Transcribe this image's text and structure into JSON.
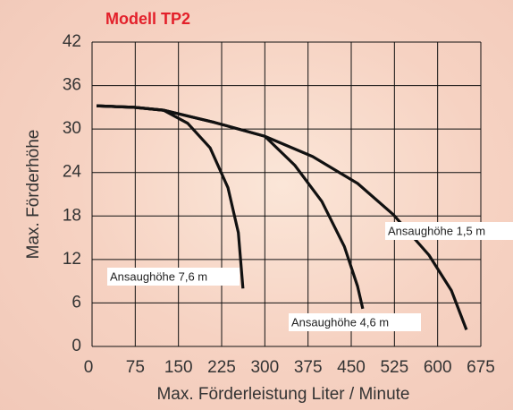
{
  "chart_data": {
    "type": "line",
    "title": "Modell TP2",
    "x_label": "Max. Förderleistung Liter / Minute",
    "y_label": "Max. Förderhöhe",
    "xlim": [
      0,
      675
    ],
    "xticks": [
      0,
      75,
      150,
      225,
      300,
      375,
      450,
      525,
      600,
      675
    ],
    "ylim": [
      0,
      42
    ],
    "yticks": [
      0,
      6,
      12,
      18,
      24,
      30,
      36,
      42
    ],
    "grid": true,
    "series": [
      {
        "name": "Ansaughöhe 7,6 m",
        "color": "#111111",
        "x": [
          8,
          73,
          124,
          166,
          205,
          236,
          254,
          262
        ],
        "values": [
          33.2,
          33.0,
          32.6,
          30.8,
          27.4,
          21.9,
          15.7,
          8.0
        ]
      },
      {
        "name": "Ansaughöhe 4,6 m",
        "color": "#111111",
        "x": [
          8,
          73,
          124,
          213,
          300,
          352,
          399,
          438,
          461,
          470
        ],
        "values": [
          33.2,
          33.0,
          32.6,
          30.9,
          29.0,
          25.0,
          20.0,
          13.8,
          8.3,
          5.2
        ]
      },
      {
        "name": "Ansaughöhe 1,5 m",
        "color": "#111111",
        "x": [
          8,
          73,
          124,
          213,
          300,
          383,
          461,
          523,
          585,
          624,
          650
        ],
        "values": [
          33.2,
          33.0,
          32.6,
          30.9,
          29.0,
          26.2,
          22.5,
          18.2,
          12.6,
          7.7,
          2.3
        ]
      }
    ]
  }
}
